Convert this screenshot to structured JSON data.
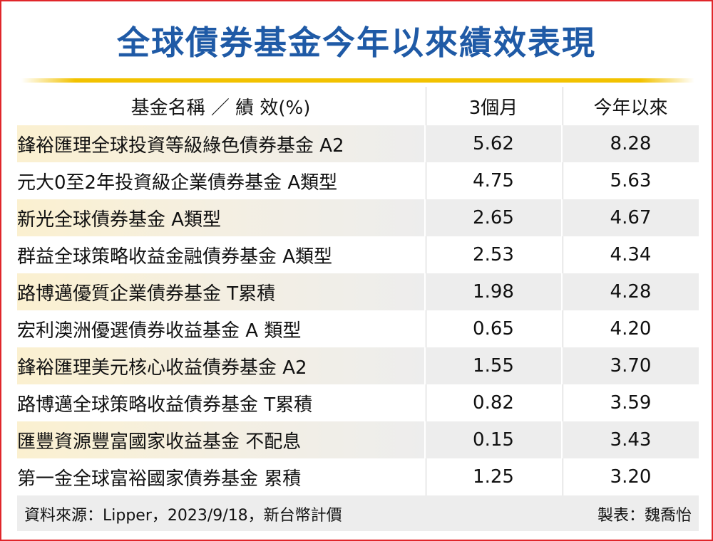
{
  "chart_data": {
    "type": "table",
    "title": "全球債券基金今年以來績效表現",
    "columns": [
      "基金名稱 ／ 績 效(%)",
      "3個月",
      "今年以來"
    ],
    "rows": [
      {
        "name": "鋒裕匯理全球投資等級綠色債券基金 A2",
        "m3": "5.62",
        "ytd": "8.28"
      },
      {
        "name": "元大0至2年投資級企業債券基金 A類型",
        "m3": "4.75",
        "ytd": "5.63"
      },
      {
        "name": "新光全球債券基金 A類型",
        "m3": "2.65",
        "ytd": "4.67"
      },
      {
        "name": "群益全球策略收益金融債券基金 A類型",
        "m3": "2.53",
        "ytd": "4.34"
      },
      {
        "name": "路博邁優質企業債券基金 T累積",
        "m3": "1.98",
        "ytd": "4.28"
      },
      {
        "name": "宏利澳洲優選債券收益基金 A 類型",
        "m3": "0.65",
        "ytd": "4.20"
      },
      {
        "name": "鋒裕匯理美元核心收益債券基金 A2",
        "m3": "1.55",
        "ytd": "3.70"
      },
      {
        "name": "路博邁全球策略收益債券基金 T累積",
        "m3": "0.82",
        "ytd": "3.59"
      },
      {
        "name": "匯豐資源豐富國家收益基金 不配息",
        "m3": "0.15",
        "ytd": "3.43"
      },
      {
        "name": "第一金全球富裕國家債券基金 累積",
        "m3": "1.25",
        "ytd": "3.20"
      }
    ],
    "source": "資料來源：Lipper，2023/9/18，新台幣計價",
    "credit": "製表：魏喬怡"
  },
  "colors": {
    "title": "#1f5aa6",
    "rule": "#f2c200",
    "border": "#e0262a",
    "stripe": "#ededed"
  }
}
